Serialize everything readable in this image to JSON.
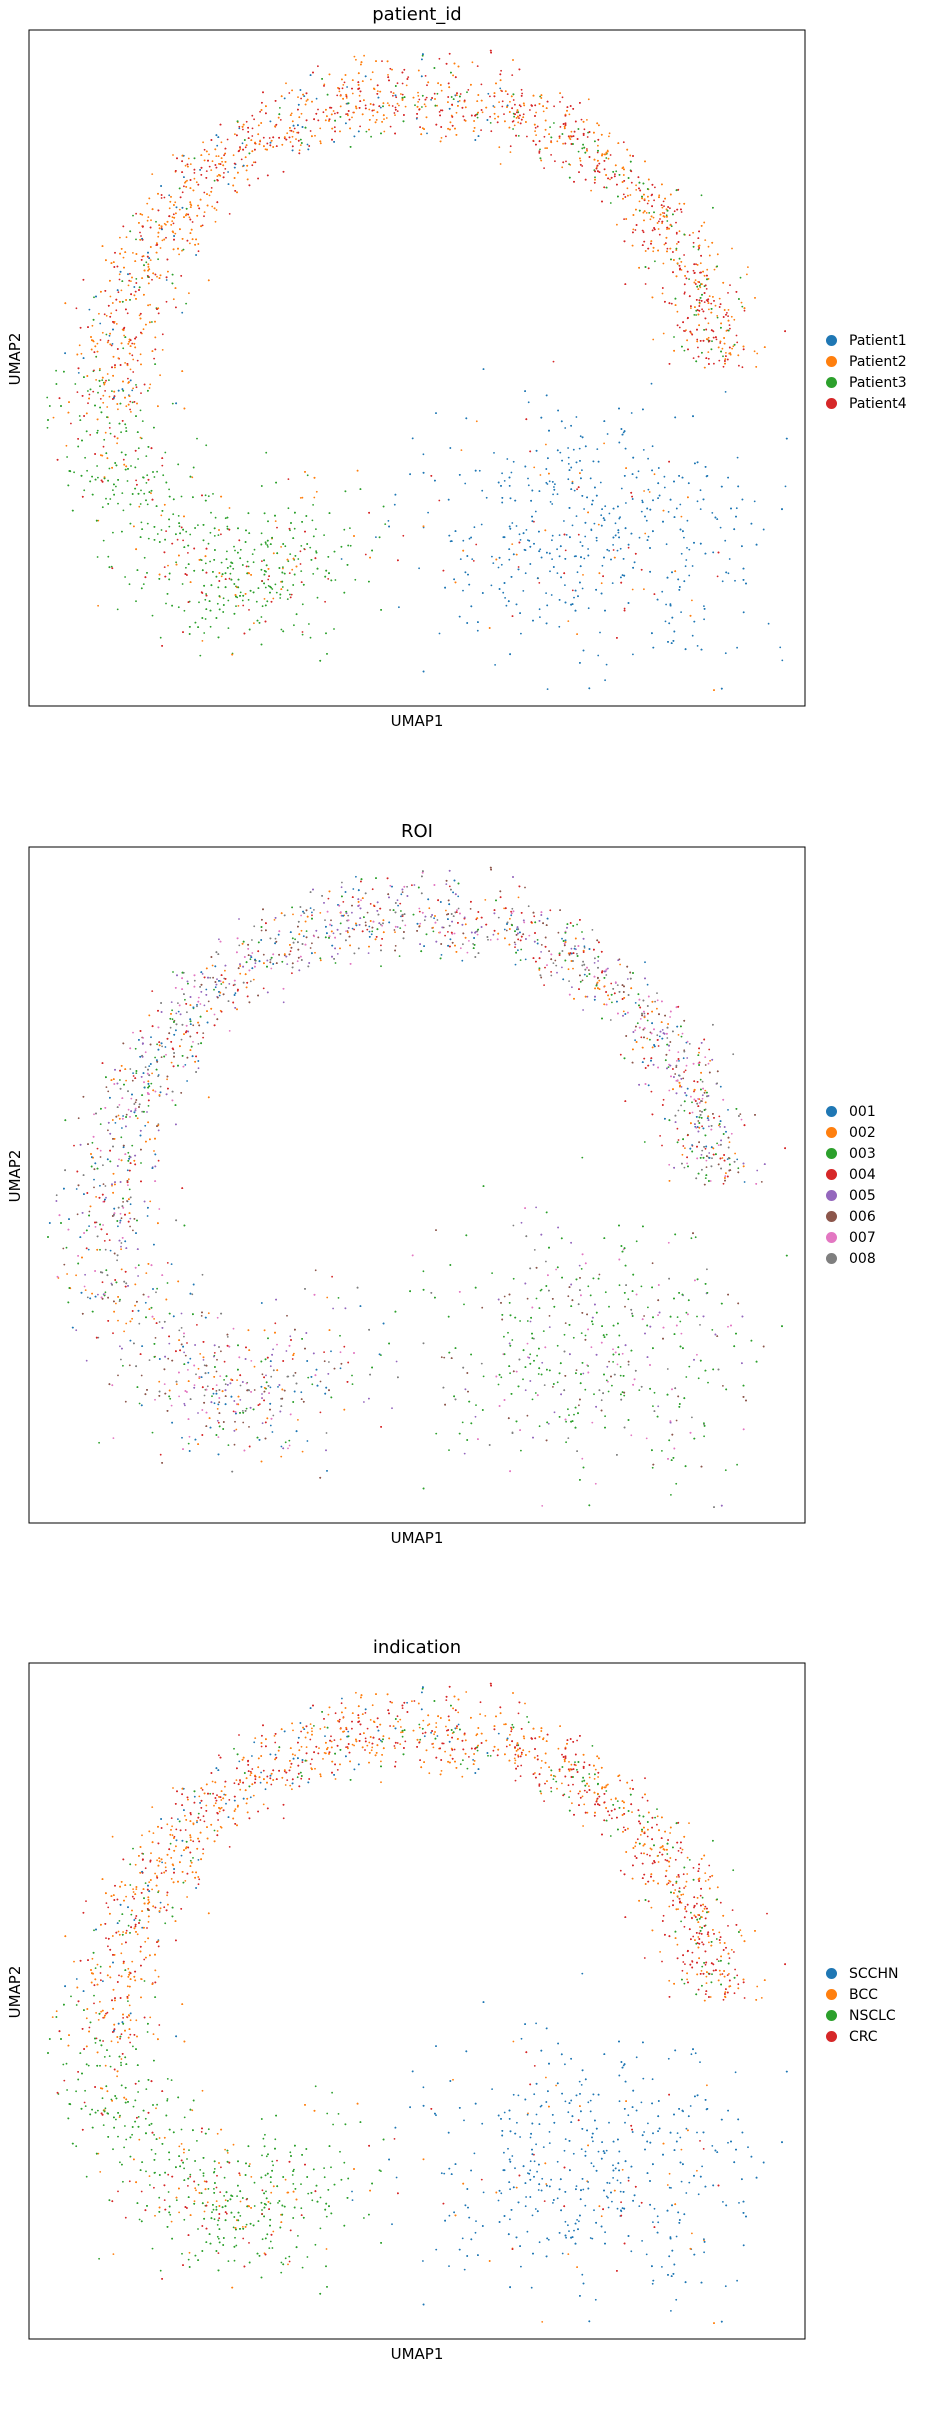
{
  "chart_data": [
    {
      "type": "scatter",
      "title": "patient_id",
      "xlabel": "UMAP1",
      "ylabel": "UMAP2",
      "grid": false,
      "legend_placement": "right",
      "legend": [
        {
          "label": "Patient1",
          "color": "#1f77b4"
        },
        {
          "label": "Patient2",
          "color": "#ff7f0e"
        },
        {
          "label": "Patient3",
          "color": "#2ca02c"
        },
        {
          "label": "Patient4",
          "color": "#d62728"
        }
      ]
    },
    {
      "type": "scatter",
      "title": "ROI",
      "xlabel": "UMAP1",
      "ylabel": "UMAP2",
      "grid": false,
      "legend_placement": "right",
      "legend": [
        {
          "label": "001",
          "color": "#1f77b4"
        },
        {
          "label": "002",
          "color": "#ff7f0e"
        },
        {
          "label": "003",
          "color": "#2ca02c"
        },
        {
          "label": "004",
          "color": "#d62728"
        },
        {
          "label": "005",
          "color": "#9467bd"
        },
        {
          "label": "006",
          "color": "#8c564b"
        },
        {
          "label": "007",
          "color": "#e377c2"
        },
        {
          "label": "008",
          "color": "#7f7f7f"
        }
      ]
    },
    {
      "type": "scatter",
      "title": "indication",
      "xlabel": "UMAP1",
      "ylabel": "UMAP2",
      "grid": false,
      "legend_placement": "right",
      "legend": [
        {
          "label": "SCCHN",
          "color": "#1f77b4"
        },
        {
          "label": "BCC",
          "color": "#ff7f0e"
        },
        {
          "label": "NSCLC",
          "color": "#2ca02c"
        },
        {
          "label": "CRC",
          "color": "#d62728"
        }
      ]
    }
  ]
}
